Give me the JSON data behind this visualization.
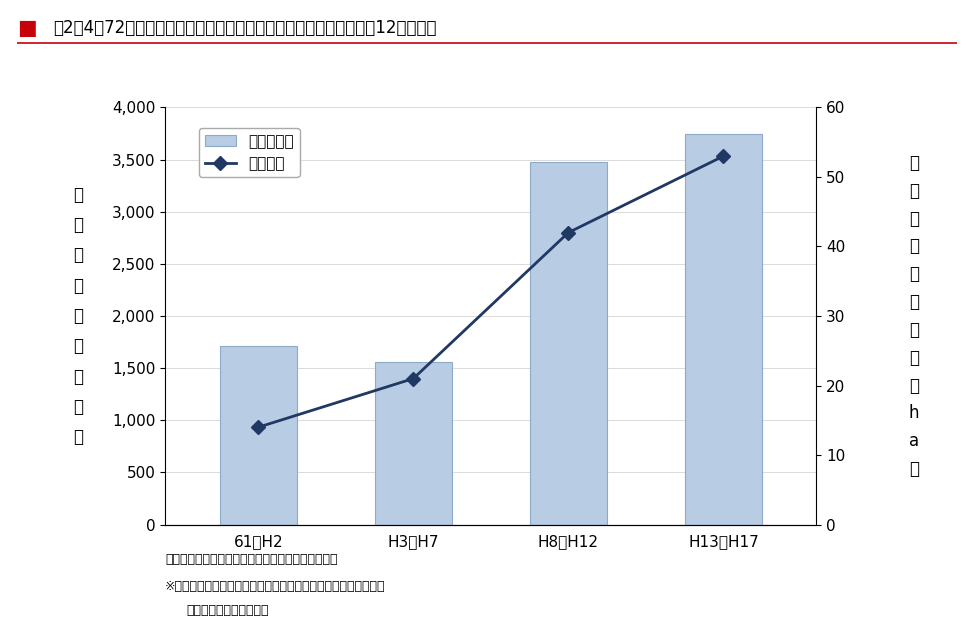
{
  "categories": [
    "61～H2",
    "H3～H7",
    "H8～H12",
    "H13～H17"
  ],
  "bar_values": [
    1710,
    1560,
    3480,
    3750
  ],
  "line_values": [
    14,
    21,
    42,
    53
  ],
  "bar_color_face": "#b8cce4",
  "bar_color_edge": "#8eaacb",
  "line_color": "#1f3864",
  "marker_color": "#1f3864",
  "ylim_left": [
    0,
    4000
  ],
  "ylim_right": [
    0,
    60
  ],
  "yticks_left": [
    0,
    500,
    1000,
    1500,
    2000,
    2500,
    3000,
    3500,
    4000
  ],
  "yticks_right": [
    0,
    10,
    20,
    30,
    40,
    50,
    60
  ],
  "ylabel_left_chars": [
    "水",
    "害",
    "被",
    "害",
    "額",
    "（",
    "億",
    "円",
    "）"
  ],
  "ylabel_right_chars": [
    "水",
    "害",
    "密",
    "度",
    "（",
    "百",
    "万",
    "円",
    "／",
    "h",
    "a",
    "）"
  ],
  "legend_bar": "水害被害額",
  "legend_line": "水害密度",
  "footnote1": "（国土交通省河川局「水害統計」より内閣府作成）",
  "footnote2": "※水害密度：水害面積（水害による「宅地その他」の浸水面積）",
  "footnote3": "当たりの一般資産被害額",
  "title_prefix": "図2－4－72　",
  "title_main": "一般資産水害被害及び水害密度の推移（年平均・平成12年価格）",
  "background_color": "#ffffff"
}
